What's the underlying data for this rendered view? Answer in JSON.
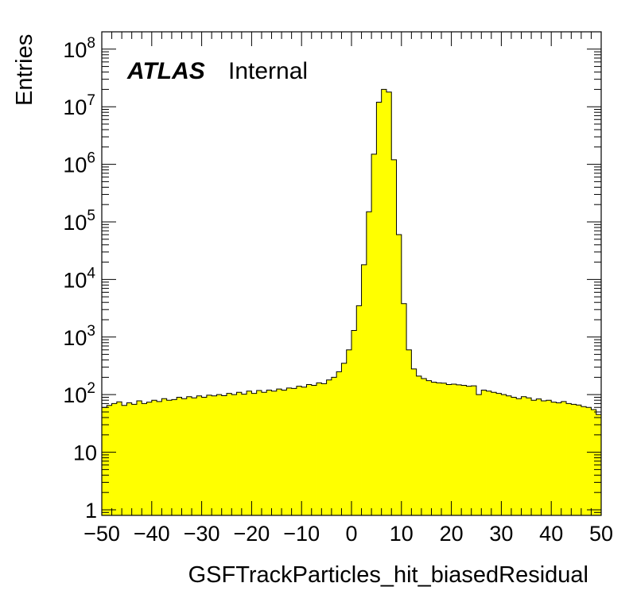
{
  "chart_data": {
    "type": "bar",
    "xlabel": "GSFTrackParticles_hit_biasedResidual",
    "ylabel": "Entries",
    "xlim": [
      -50,
      50
    ],
    "ylim": [
      0.8,
      200000000
    ],
    "yscale": "log",
    "grid": false,
    "fill_color": "#ffff00",
    "line_color": "#000000",
    "annotation": {
      "bold": "ATLAS",
      "text": "Internal"
    },
    "x_ticks": [
      "−50",
      "−40",
      "−30",
      "−20",
      "−10",
      "0",
      "10",
      "20",
      "30",
      "40",
      "50"
    ],
    "x_tick_values": [
      -50,
      -40,
      -30,
      -20,
      -10,
      0,
      10,
      20,
      30,
      40,
      50
    ],
    "y_ticks": [
      {
        "value": 1,
        "base": "1",
        "exp": ""
      },
      {
        "value": 10,
        "base": "10",
        "exp": ""
      },
      {
        "value": 100,
        "base": "10",
        "exp": "2"
      },
      {
        "value": 1000,
        "base": "10",
        "exp": "3"
      },
      {
        "value": 10000,
        "base": "10",
        "exp": "4"
      },
      {
        "value": 100000,
        "base": "10",
        "exp": "5"
      },
      {
        "value": 1000000,
        "base": "10",
        "exp": "6"
      },
      {
        "value": 10000000,
        "base": "10",
        "exp": "7"
      },
      {
        "value": 100000000,
        "base": "10",
        "exp": "8"
      }
    ],
    "bin_width": 1,
    "x_start": -50,
    "values": [
      60,
      65,
      70,
      75,
      65,
      72,
      68,
      78,
      70,
      74,
      80,
      76,
      85,
      80,
      82,
      90,
      85,
      92,
      88,
      95,
      90,
      98,
      95,
      100,
      96,
      105,
      100,
      110,
      102,
      115,
      105,
      118,
      110,
      120,
      115,
      125,
      120,
      130,
      128,
      140,
      135,
      150,
      145,
      160,
      155,
      180,
      200,
      250,
      350,
      600,
      1300,
      3500,
      18000,
      150000,
      1500000,
      12000000,
      20000000,
      18000000,
      1200000,
      60000,
      3800,
      600,
      280,
      210,
      190,
      175,
      165,
      160,
      158,
      150,
      152,
      148,
      145,
      140,
      142,
      100,
      120,
      115,
      110,
      105,
      100,
      95,
      90,
      85,
      92,
      88,
      80,
      84,
      78,
      80,
      74,
      72,
      76,
      70,
      68,
      66,
      62,
      60,
      55,
      45
    ]
  }
}
